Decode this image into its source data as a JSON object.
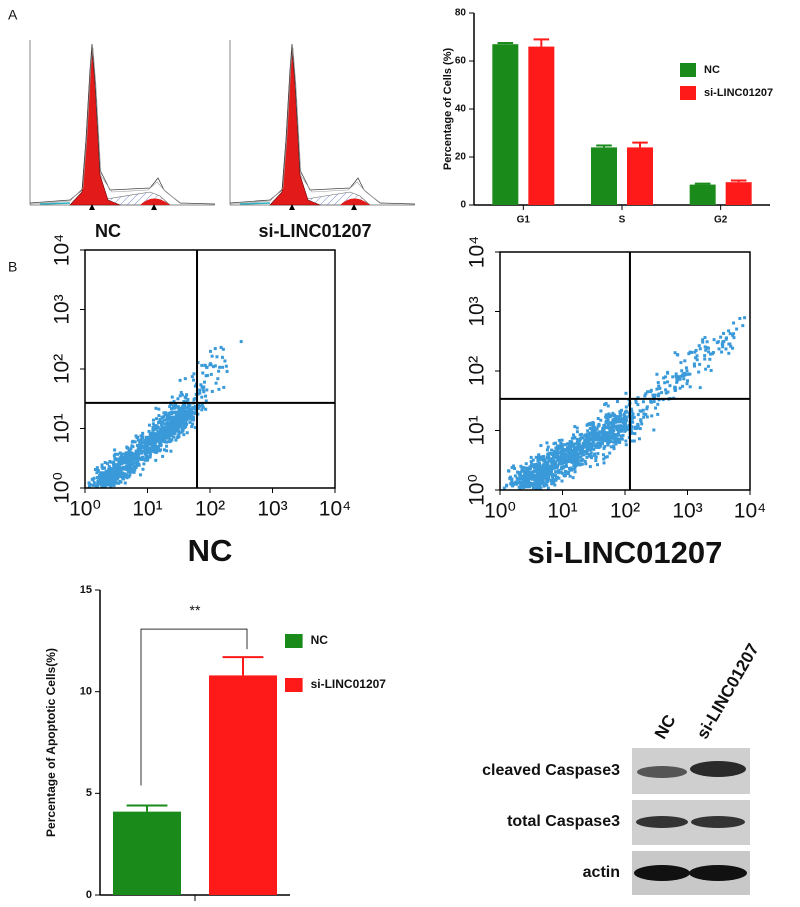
{
  "panel_labels": [
    "A",
    "B"
  ],
  "histograms": {
    "labels": [
      "NC",
      "si-LINC01207"
    ]
  },
  "chart_data": [
    {
      "type": "bar",
      "y_label": "Percentage of Cells (%)",
      "categories": [
        "G1",
        "S",
        "G2"
      ],
      "series": [
        {
          "name": "NC",
          "color": "#1a8a1a",
          "values": [
            67,
            24,
            8.5
          ],
          "errors": [
            0.5,
            0.8,
            0.4
          ]
        },
        {
          "name": "si-LINC01207",
          "color": "#ff1a1a",
          "values": [
            66,
            24,
            9.5
          ],
          "errors": [
            3,
            2,
            0.7
          ]
        }
      ],
      "ylim": [
        0,
        80
      ],
      "yticks": [
        0,
        20,
        40,
        60,
        80
      ]
    },
    {
      "type": "scatter",
      "title": "NC",
      "xscale": "log",
      "yscale": "log",
      "xlim": [
        1,
        10000
      ],
      "ylim": [
        1,
        10000
      ],
      "xticks": [
        {
          "value": 1,
          "label": "10⁰"
        },
        {
          "value": 10,
          "label": "10¹"
        },
        {
          "value": 100,
          "label": "10²"
        },
        {
          "value": 1000,
          "label": "10³"
        },
        {
          "value": 10000,
          "label": "10⁴"
        }
      ],
      "yticks": [
        {
          "value": 1,
          "label": "10⁰"
        },
        {
          "value": 10,
          "label": "10¹"
        },
        {
          "value": 100,
          "label": "10²"
        },
        {
          "value": 1000,
          "label": "10³"
        },
        {
          "value": 10000,
          "label": "10⁴"
        }
      ],
      "gate": [
        62,
        27
      ],
      "color": "#3a9ad9"
    },
    {
      "type": "scatter",
      "title": "si-LINC01207",
      "xscale": "log",
      "yscale": "log",
      "xlim": [
        1,
        10000
      ],
      "ylim": [
        1,
        10000
      ],
      "xticks": [
        {
          "value": 1,
          "label": "10⁰"
        },
        {
          "value": 10,
          "label": "10¹"
        },
        {
          "value": 100,
          "label": "10²"
        },
        {
          "value": 1000,
          "label": "10³"
        },
        {
          "value": 10000,
          "label": "10⁴"
        }
      ],
      "yticks": [
        {
          "value": 1,
          "label": "10⁰"
        },
        {
          "value": 10,
          "label": "10¹"
        },
        {
          "value": 100,
          "label": "10²"
        },
        {
          "value": 1000,
          "label": "10³"
        },
        {
          "value": 10000,
          "label": "10⁴"
        }
      ],
      "gate": [
        120,
        34
      ],
      "color": "#3a9ad9"
    },
    {
      "type": "bar",
      "y_label": "Percentage of Apoptotic Cells(%)",
      "annotation": "**",
      "series": [
        {
          "name": "NC",
          "color": "#1a8a1a",
          "values": [
            4.1
          ],
          "errors": [
            0.3
          ]
        },
        {
          "name": "si-LINC01207",
          "color": "#ff1a1a",
          "values": [
            10.8
          ],
          "errors": [
            0.9
          ]
        }
      ],
      "ylim": [
        0,
        15
      ],
      "yticks": [
        0,
        5,
        10,
        15
      ]
    }
  ],
  "western_blot": {
    "lanes": [
      "NC",
      "si-LINC01207"
    ],
    "rows": [
      "cleaved Caspase3",
      "total Caspase3",
      "actin"
    ]
  }
}
